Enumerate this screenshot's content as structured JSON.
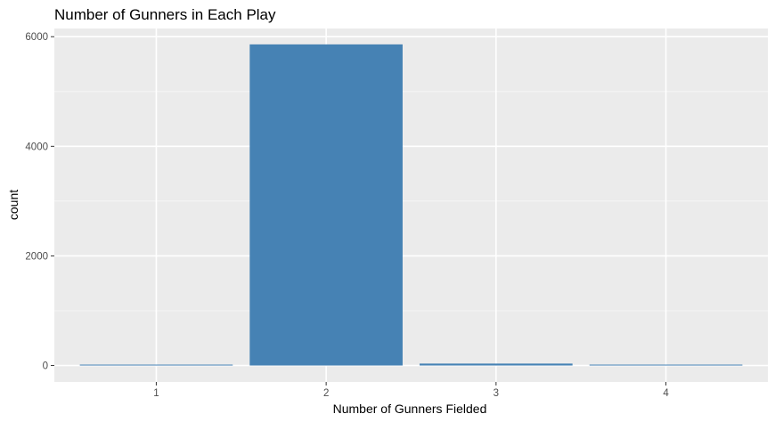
{
  "chart_data": {
    "type": "bar",
    "title": "Number of Gunners in Each Play",
    "xlabel": "Number of Gunners Fielded",
    "ylabel": "count",
    "categories": [
      "1",
      "2",
      "3",
      "4"
    ],
    "values": [
      12,
      5860,
      35,
      10
    ],
    "ylim": [
      -300,
      6150
    ],
    "yticks": [
      0,
      2000,
      4000,
      6000
    ],
    "grid": true,
    "legend": "none",
    "colors": {
      "bar": "#4682B4",
      "panel": "#EBEBEB",
      "grid_major": "#FFFFFF",
      "grid_minor": "#F5F5F5",
      "tick_text": "#4D4D4D",
      "tick_mark": "#333333"
    }
  }
}
